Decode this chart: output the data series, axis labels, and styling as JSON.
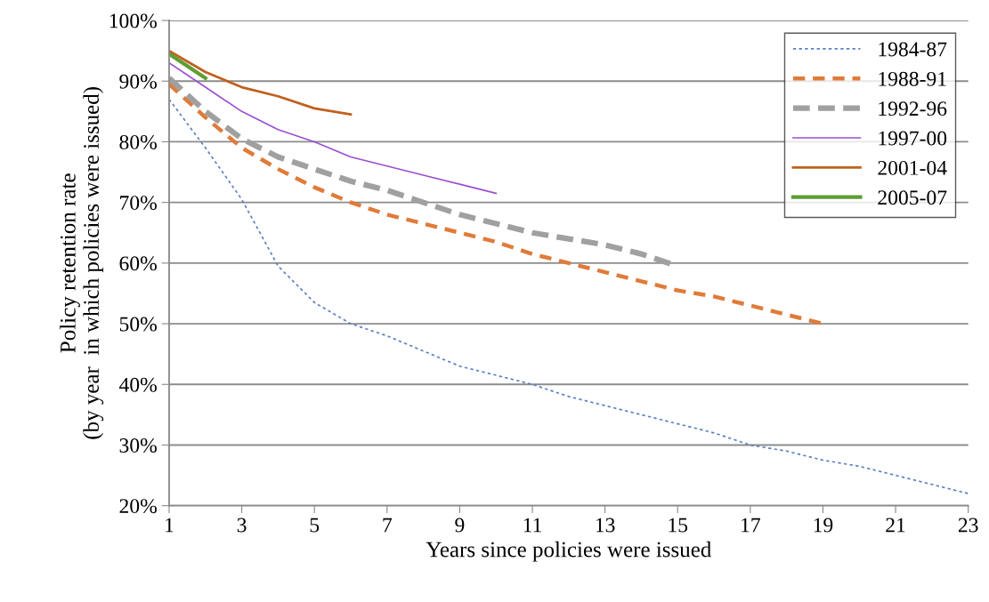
{
  "chart_data": {
    "type": "line",
    "xlabel": "Years since policies were issued",
    "ylabel": "Policy retention rate\n(by year  in which policies were issued)",
    "x": [
      1,
      2,
      3,
      4,
      5,
      6,
      7,
      8,
      9,
      10,
      11,
      12,
      13,
      14,
      15,
      16,
      17,
      18,
      19,
      20,
      21,
      22,
      23
    ],
    "xlim": [
      1,
      23
    ],
    "xticks": [
      1,
      3,
      5,
      7,
      9,
      11,
      13,
      15,
      17,
      19,
      21,
      23
    ],
    "ylim": [
      20,
      100
    ],
    "yticks": [
      {
        "value": 20,
        "label": "20%"
      },
      {
        "value": 30,
        "label": "30%"
      },
      {
        "value": 40,
        "label": "40%"
      },
      {
        "value": 50,
        "label": "50%"
      },
      {
        "value": 60,
        "label": "60%"
      },
      {
        "value": 70,
        "label": "70%"
      },
      {
        "value": 80,
        "label": "80%"
      },
      {
        "value": 90,
        "label": "90%"
      },
      {
        "value": 100,
        "label": "100%"
      }
    ],
    "grid": "y",
    "legend": "top right",
    "series": [
      {
        "name": "1984-87",
        "color": "#5b7fc0",
        "line_style": "dotted",
        "values": [
          87,
          79,
          70.5,
          59.5,
          53.5,
          50,
          48,
          45.5,
          43,
          41.5,
          40,
          38,
          36.5,
          35,
          33.5,
          32,
          30,
          29,
          27.5,
          26.5,
          25,
          23.5,
          22
        ]
      },
      {
        "name": "1988-91",
        "color": "#e07b39",
        "line_style": "dashed",
        "values": [
          89.5,
          84,
          79,
          75.5,
          72.5,
          70,
          68,
          66.5,
          65,
          63.5,
          61.5,
          60,
          58.5,
          57,
          55.5,
          54.5,
          53,
          51.5,
          50,
          null,
          null,
          null,
          null
        ]
      },
      {
        "name": "1992-96",
        "color": "#a0a0a0",
        "line_style": "dashed",
        "values": [
          90.5,
          85,
          80.5,
          77.5,
          75.5,
          73.5,
          72,
          70,
          68,
          66.5,
          65,
          64,
          63,
          61.5,
          59.5,
          null,
          null,
          null,
          null,
          null,
          null,
          null,
          null
        ]
      },
      {
        "name": "1997-00",
        "color": "#9b4fd0",
        "line_style": "solid",
        "values": [
          93,
          89,
          85,
          82,
          80,
          77.5,
          76,
          74.5,
          73,
          71.5,
          null,
          null,
          null,
          null,
          null,
          null,
          null,
          null,
          null,
          null,
          null,
          null,
          null
        ]
      },
      {
        "name": "2001-04",
        "color": "#c0601e",
        "line_style": "solid",
        "values": [
          95,
          91.5,
          89,
          87.5,
          85.5,
          84.5,
          null,
          null,
          null,
          null,
          null,
          null,
          null,
          null,
          null,
          null,
          null,
          null,
          null,
          null,
          null,
          null,
          null
        ]
      },
      {
        "name": "2005-07",
        "color": "#5e9e32",
        "line_style": "solid",
        "values": [
          94.5,
          90.5,
          null,
          null,
          null,
          null,
          null,
          null,
          null,
          null,
          null,
          null,
          null,
          null,
          null,
          null,
          null,
          null,
          null,
          null,
          null,
          null,
          null
        ]
      }
    ]
  }
}
